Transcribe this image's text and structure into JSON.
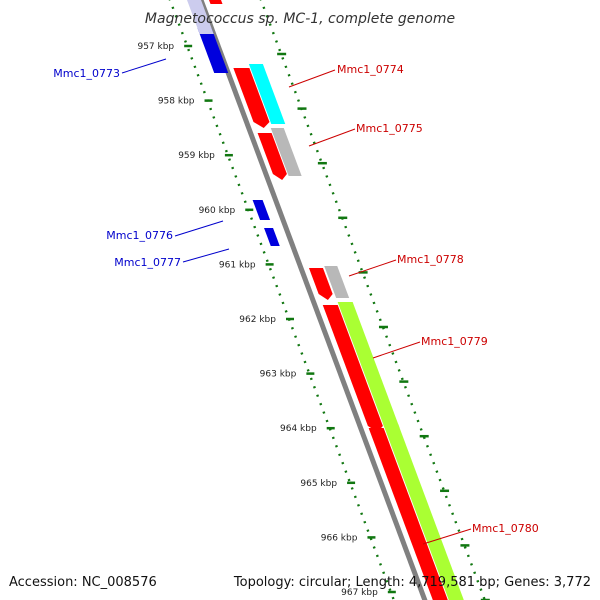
{
  "title": "Magnetococcus sp. MC-1, complete genome",
  "footer": {
    "accession": "Accession: NC_008576",
    "topology": "Topology: circular; Length: 4,719,581 bp; Genes: 3,772"
  },
  "ruler": {
    "unit": "kbp",
    "ticks": [
      "957 kbp",
      "958 kbp",
      "959 kbp",
      "960 kbp",
      "961 kbp",
      "962 kbp",
      "963 kbp",
      "964 kbp",
      "965 kbp",
      "966 kbp",
      "967 kbp"
    ]
  },
  "colors": {
    "reverse_gene": "#0000dd",
    "forward_cds": "#ff0000",
    "cyan_track": "#00ffff",
    "grey_track": "#b8b8b8",
    "green_track": "#aaff33",
    "backbone": "#808080",
    "ruler_dots": "#117711",
    "reverse_label": "#0000cc",
    "forward_label": "#cc0000"
  },
  "genes": [
    {
      "id": "Mmc1_0773",
      "strand": "reverse"
    },
    {
      "id": "Mmc1_0774",
      "strand": "forward"
    },
    {
      "id": "Mmc1_0775",
      "strand": "forward"
    },
    {
      "id": "Mmc1_0776",
      "strand": "reverse"
    },
    {
      "id": "Mmc1_0777",
      "strand": "reverse"
    },
    {
      "id": "Mmc1_0778",
      "strand": "forward"
    },
    {
      "id": "Mmc1_0779",
      "strand": "forward"
    },
    {
      "id": "Mmc1_0780",
      "strand": "forward"
    }
  ]
}
